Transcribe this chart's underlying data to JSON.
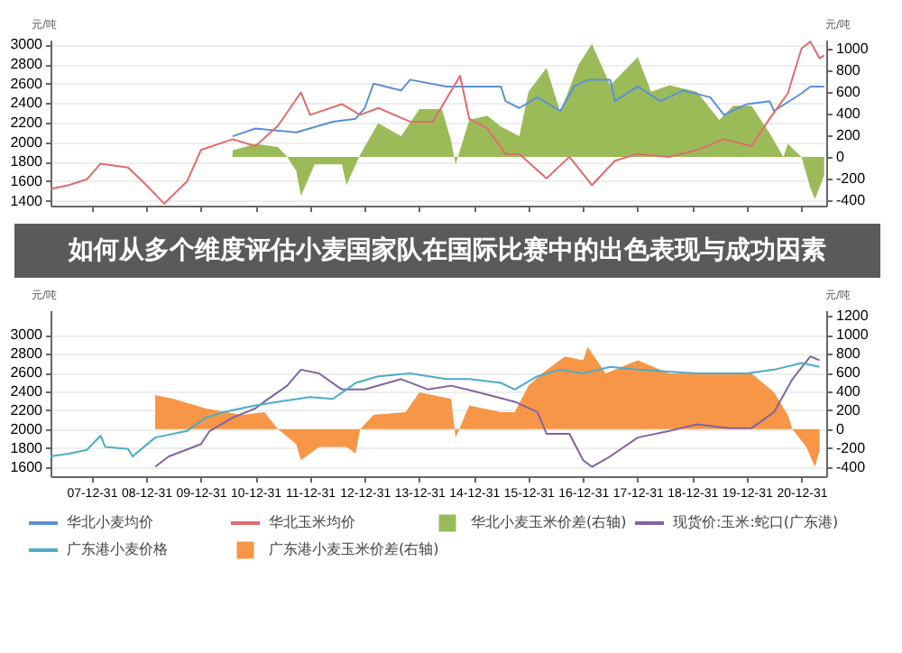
{
  "chart_data": [
    {
      "type": "line",
      "title": "如何从多个维度评估小麦国家队在国际比赛中的出色表现与成功因素",
      "ylabel": "元/吨",
      "y2label": "元/吨",
      "xlim": [
        "2007-04-01",
        "2021-06-15"
      ],
      "xticks": [
        {
          "value": "2007-12-31",
          "label": null
        },
        {
          "value": "2008-12-31",
          "label": null
        },
        {
          "value": "2009-12-31",
          "label": null
        },
        {
          "value": "2010-12-31",
          "label": null
        },
        {
          "value": "2011-12-31",
          "label": null
        },
        {
          "value": "2012-12-31",
          "label": null
        },
        {
          "value": "2013-12-31",
          "label": null
        },
        {
          "value": "2014-12-31",
          "label": null
        },
        {
          "value": "2015-12-31",
          "label": null
        },
        {
          "value": "2016-12-31",
          "label": null
        },
        {
          "value": "2017-12-31",
          "label": null
        },
        {
          "value": "2018-12-31",
          "label": null
        },
        {
          "value": "2019-12-31",
          "label": null
        },
        {
          "value": "2020-12-31",
          "label": null
        }
      ],
      "ylim": [
        1350,
        3050
      ],
      "yticks": [
        1400,
        1600,
        1800,
        2000,
        2200,
        2400,
        2600,
        2800,
        3000
      ],
      "y2lim": [
        -450,
        1080
      ],
      "y2ticks": [
        -400,
        -200,
        0,
        200,
        400,
        600,
        800,
        1000
      ],
      "grid": "y",
      "legend": "bottom",
      "tick_labels": "y",
      "series": [
        {
          "name": "华北小麦均价",
          "color": "#5b8fd9",
          "x": [
            "2010-08",
            "2011-01",
            "2011-10",
            "2012-06",
            "2012-11",
            "2013-01",
            "2013-03",
            "2013-09",
            "2013-11",
            "2014-07",
            "2014-10",
            "2015-07",
            "2015-08",
            "2015-11",
            "2016-03",
            "2016-08",
            "2016-11",
            "2017-02",
            "2017-07",
            "2017-08",
            "2018-01",
            "2018-06",
            "2018-11",
            "2019-05",
            "2019-08",
            "2020-01",
            "2020-06",
            "2020-07",
            "2021-01",
            "2021-03",
            "2021-06"
          ],
          "values": [
            2060,
            2140,
            2100,
            2210,
            2240,
            2350,
            2600,
            2530,
            2640,
            2570,
            2570,
            2570,
            2420,
            2350,
            2460,
            2320,
            2570,
            2640,
            2640,
            2420,
            2570,
            2420,
            2530,
            2460,
            2280,
            2390,
            2420,
            2320,
            2500,
            2570,
            2570
          ]
        },
        {
          "name": "华北玉米均价",
          "color": "#e06c6c",
          "x": [
            "2007-04",
            "2007-08",
            "2007-12",
            "2008-03",
            "2008-09",
            "2009-01",
            "2009-05",
            "2009-10",
            "2010-01",
            "2010-08",
            "2011-01",
            "2011-06",
            "2011-11",
            "2012-01",
            "2012-08",
            "2012-12",
            "2013-04",
            "2013-11",
            "2014-04",
            "2014-10",
            "2014-12",
            "2015-04",
            "2015-08",
            "2015-11",
            "2016-05",
            "2016-10",
            "2017-03",
            "2017-08",
            "2018-01",
            "2018-08",
            "2019-02",
            "2019-08",
            "2020-02",
            "2020-06",
            "2020-10",
            "2021-01",
            "2021-03",
            "2021-05",
            "2021-06"
          ],
          "values": [
            1520,
            1560,
            1620,
            1780,
            1740,
            1560,
            1370,
            1600,
            1920,
            2030,
            1960,
            2170,
            2510,
            2280,
            2390,
            2280,
            2350,
            2210,
            2210,
            2680,
            2240,
            2140,
            1880,
            1880,
            1630,
            1850,
            1560,
            1810,
            1880,
            1850,
            1920,
            2030,
            1960,
            2240,
            2500,
            2960,
            3030,
            2860,
            2890
          ]
        },
        {
          "name": "华北小麦玉米价差(右轴)",
          "type": "area",
          "axis": "y2",
          "color": "#9bbb59",
          "x": [
            "2010-08",
            "2011-01",
            "2011-06",
            "2011-08",
            "2011-10",
            "2011-11",
            "2012-02",
            "2012-08",
            "2012-09",
            "2012-12",
            "2013-04",
            "2013-09",
            "2014-01",
            "2014-06",
            "2014-08",
            "2014-09",
            "2014-12",
            "2015-04",
            "2015-07",
            "2015-11",
            "2016-01",
            "2016-05",
            "2016-08",
            "2016-12",
            "2017-03",
            "2017-07",
            "2018-01",
            "2018-04",
            "2018-08",
            "2019-02",
            "2019-07",
            "2019-10",
            "2020-02",
            "2020-06",
            "2020-09",
            "2020-10",
            "2021-01",
            "2021-03",
            "2021-04",
            "2021-06"
          ],
          "values": [
            60,
            120,
            90,
            0,
            -130,
            -360,
            -70,
            -70,
            -260,
            20,
            310,
            190,
            440,
            440,
            150,
            -70,
            340,
            380,
            280,
            190,
            600,
            820,
            410,
            850,
            1040,
            660,
            920,
            600,
            660,
            600,
            340,
            470,
            470,
            220,
            0,
            120,
            0,
            -290,
            -390,
            -170
          ]
        }
      ]
    },
    {
      "type": "line",
      "ylabel": "元/吨",
      "y2label": "元/吨",
      "xlim": [
        "2007-04-01",
        "2021-06-15"
      ],
      "xticks": [
        {
          "value": "2007-12-31",
          "label": "07-12-31"
        },
        {
          "value": "2008-12-31",
          "label": "08-12-31"
        },
        {
          "value": "2009-12-31",
          "label": "09-12-31"
        },
        {
          "value": "2010-12-31",
          "label": "10-12-31"
        },
        {
          "value": "2011-12-31",
          "label": "11-12-31"
        },
        {
          "value": "2012-12-31",
          "label": "12-12-31"
        },
        {
          "value": "2013-12-31",
          "label": "13-12-31"
        },
        {
          "value": "2014-12-31",
          "label": "14-12-31"
        },
        {
          "value": "2015-12-31",
          "label": "15-12-31"
        },
        {
          "value": "2016-12-31",
          "label": "16-12-31"
        },
        {
          "value": "2017-12-31",
          "label": "17-12-31"
        },
        {
          "value": "2018-12-31",
          "label": "18-12-31"
        },
        {
          "value": "2019-12-31",
          "label": "19-12-31"
        },
        {
          "value": "2020-12-31",
          "label": "20-12-31"
        }
      ],
      "ylim": [
        1500,
        3260
      ],
      "yticks": [
        1600,
        1800,
        2000,
        2200,
        2400,
        2600,
        2800,
        3000
      ],
      "y2lim": [
        -500,
        1260
      ],
      "y2ticks": [
        -400,
        -200,
        0,
        200,
        400,
        600,
        800,
        1000,
        1200
      ],
      "grid": "y",
      "legend": "bottom",
      "series": [
        {
          "name": "现货价:玉米:蛇口(广东港)",
          "color": "#8064a2",
          "x": [
            "2009-03",
            "2009-06",
            "2010-01",
            "2010-03",
            "2010-08",
            "2011-01",
            "2011-03",
            "2011-08",
            "2011-11",
            "2012-03",
            "2012-08",
            "2013-01",
            "2013-09",
            "2014-03",
            "2014-08",
            "2015-02",
            "2015-10",
            "2016-03",
            "2016-05",
            "2016-10",
            "2017-01",
            "2017-03",
            "2017-07",
            "2018-01",
            "2018-08",
            "2019-02",
            "2019-09",
            "2020-02",
            "2020-07",
            "2020-11",
            "2021-03",
            "2021-05"
          ],
          "values": [
            1600,
            1710,
            1840,
            1980,
            2120,
            2220,
            2290,
            2460,
            2630,
            2590,
            2420,
            2420,
            2530,
            2420,
            2460,
            2390,
            2290,
            2180,
            1950,
            1950,
            1670,
            1600,
            1710,
            1910,
            1980,
            2050,
            2010,
            2010,
            2180,
            2530,
            2770,
            2730
          ]
        },
        {
          "name": "广东港小麦价格",
          "color": "#4bacc6",
          "x": [
            "2007-04",
            "2007-08",
            "2007-12",
            "2008-03",
            "2008-04",
            "2008-09",
            "2008-10",
            "2009-03",
            "2009-10",
            "2010-02",
            "2010-06",
            "2011-01",
            "2011-06",
            "2012-01",
            "2012-06",
            "2012-09",
            "2012-11",
            "2013-04",
            "2013-11",
            "2014-07",
            "2014-12",
            "2015-07",
            "2015-10",
            "2016-03",
            "2016-08",
            "2017-01",
            "2017-07",
            "2018-01",
            "2019-02",
            "2020-01",
            "2020-07",
            "2021-01",
            "2021-05"
          ],
          "values": [
            1710,
            1740,
            1780,
            1930,
            1810,
            1790,
            1710,
            1910,
            1980,
            2120,
            2180,
            2250,
            2290,
            2340,
            2320,
            2420,
            2490,
            2560,
            2590,
            2530,
            2530,
            2490,
            2420,
            2560,
            2630,
            2590,
            2660,
            2630,
            2590,
            2590,
            2630,
            2700,
            2660
          ]
        },
        {
          "name": "广东港小麦玉米价差(右轴)",
          "type": "area",
          "axis": "y2",
          "color": "#f79646",
          "x": [
            "2009-03",
            "2009-07",
            "2010-02",
            "2010-10",
            "2011-03",
            "2011-06",
            "2011-10",
            "2011-11",
            "2012-03",
            "2012-09",
            "2012-11",
            "2012-12",
            "2013-03",
            "2013-10",
            "2014-01",
            "2014-08",
            "2014-09",
            "2014-12",
            "2015-07",
            "2015-10",
            "2016-01",
            "2016-04",
            "2016-09",
            "2017-01",
            "2017-02",
            "2017-06",
            "2018-01",
            "2018-08",
            "2019-02",
            "2019-08",
            "2020-02",
            "2020-07",
            "2020-10",
            "2020-11",
            "2021-02",
            "2021-04",
            "2021-05"
          ],
          "values": [
            360,
            320,
            220,
            150,
            180,
            0,
            -160,
            -330,
            -190,
            -190,
            -260,
            0,
            150,
            180,
            390,
            320,
            -90,
            250,
            180,
            180,
            460,
            590,
            770,
            730,
            870,
            590,
            730,
            590,
            590,
            590,
            590,
            390,
            150,
            0,
            -190,
            -400,
            -230
          ]
        }
      ]
    }
  ]
}
